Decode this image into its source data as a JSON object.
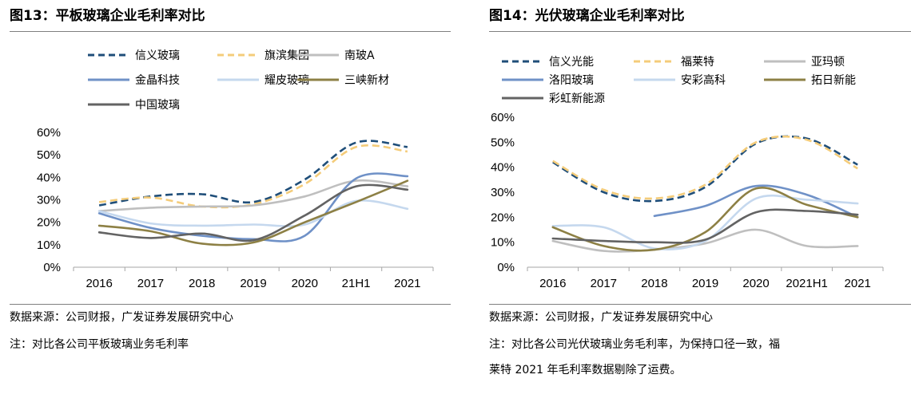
{
  "charts": [
    {
      "figure_title": "图13：平板玻璃企业毛利率对比",
      "source": "数据来源：公司财报，广发证券发展研究中心",
      "notes": [
        "注：对比各公司平板玻璃业务毛利率"
      ],
      "chart_data": {
        "type": "line",
        "title": "",
        "xlabel": "",
        "ylabel": "",
        "categories": [
          "2016",
          "2017",
          "2018",
          "2019",
          "2020",
          "21H1",
          "2021"
        ],
        "yticks": [
          "0%",
          "10%",
          "20%",
          "30%",
          "40%",
          "50%",
          "60%"
        ],
        "ylim": [
          0,
          60
        ],
        "grid": false,
        "legend": "top",
        "series": [
          {
            "name": "信义玻璃",
            "color": "#1f4e79",
            "dash": "dash",
            "values": [
              27.5,
              31.5,
              32.5,
              29,
              39,
              55.5,
              53.5
            ]
          },
          {
            "name": "旗滨集团",
            "color": "#f4cc7a",
            "dash": "dash",
            "values": [
              29,
              31,
              27,
              28,
              37,
              53.5,
              51.5
            ]
          },
          {
            "name": "南玻A",
            "color": "#bfbfbf",
            "dash": "solid",
            "values": [
              25,
              26.5,
              27,
              27.5,
              31.5,
              38.5,
              36
            ]
          },
          {
            "name": "金晶科技",
            "color": "#6f91c7",
            "dash": "solid",
            "values": [
              24,
              17.5,
              14,
              12.5,
              14,
              39.5,
              40.5
            ]
          },
          {
            "name": "耀皮玻璃",
            "color": "#c5d8ee",
            "dash": "solid",
            "values": [
              25,
              19.5,
              18.5,
              19,
              19,
              29.5,
              26
            ]
          },
          {
            "name": "三峡新材",
            "color": "#8d8045",
            "dash": "solid",
            "values": [
              18.5,
              16,
              10.5,
              11,
              20,
              29,
              38.5
            ]
          },
          {
            "name": "中国玻璃",
            "color": "#636363",
            "dash": "solid",
            "values": [
              15.5,
              13,
              15,
              12,
              23,
              36,
              34.5
            ]
          }
        ]
      }
    },
    {
      "figure_title": "图14：光伏玻璃企业毛利率对比",
      "source": "数据来源：公司财报，广发证券发展研究中心",
      "notes": [
        "注：对比各公司光伏玻璃业务毛利率，为保持口径一致，福",
        "莱特 2021 年毛利率数据剔除了运费。"
      ],
      "chart_data": {
        "type": "line",
        "title": "",
        "xlabel": "",
        "ylabel": "",
        "categories": [
          "2016",
          "2017",
          "2018",
          "2019",
          "2020",
          "2021H1",
          "2021"
        ],
        "yticks": [
          "0%",
          "10%",
          "20%",
          "30%",
          "40%",
          "50%",
          "60%"
        ],
        "ylim": [
          0,
          60
        ],
        "grid": false,
        "legend": "top",
        "series": [
          {
            "name": "信义光能",
            "color": "#1f4e79",
            "dash": "dash",
            "values": [
              42,
              30,
              26.5,
              32,
              49.5,
              51.5,
              41
            ]
          },
          {
            "name": "福莱特",
            "color": "#f4cc7a",
            "dash": "dash",
            "values": [
              42.5,
              31,
              27.5,
              33,
              50,
              51,
              39.5
            ]
          },
          {
            "name": "亚玛顿",
            "color": "#bfbfbf",
            "dash": "solid",
            "values": [
              10.5,
              6.5,
              7,
              9.5,
              15,
              8.5,
              8.5
            ]
          },
          {
            "name": "洛阳玻璃",
            "color": "#6f91c7",
            "dash": "solid",
            "values": [
              null,
              null,
              20.5,
              24.5,
              32.5,
              29,
              20
            ]
          },
          {
            "name": "安彩高科",
            "color": "#c5d8ee",
            "dash": "solid",
            "values": [
              16.5,
              16,
              7.5,
              10.5,
              27.5,
              27,
              25.5
            ]
          },
          {
            "name": "拓日新能",
            "color": "#8d8045",
            "dash": "solid",
            "values": [
              16,
              8.5,
              7,
              14,
              31.5,
              25,
              20
            ]
          },
          {
            "name": "彩虹新能源",
            "color": "#636363",
            "dash": "solid",
            "values": [
              11.5,
              10.5,
              10,
              11,
              22,
              22.5,
              21
            ]
          }
        ]
      }
    }
  ]
}
